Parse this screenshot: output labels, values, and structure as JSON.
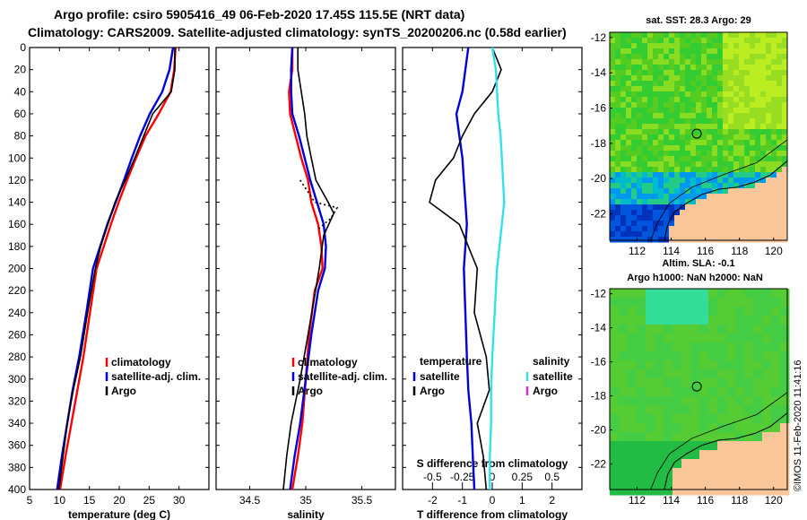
{
  "header": {
    "line1": "Argo profile: csiro 5905416_49 06-Feb-2020 17.45S 115.5E (NRT data)",
    "line2": "Climatology: CARS2009. Satellite-adjusted climatology: synTS_20200206.nc (0.58d earlier)"
  },
  "side_label": "©IMOS 11-Feb-2020 11:41:16",
  "colors": {
    "climatology": "#ff0000",
    "satellite": "#0000dd",
    "argo": "#000000",
    "salinity_satellite": "#33e0ee",
    "salinity_argo": "#cc33cc",
    "land": "#f9c69a"
  },
  "chart_data": [
    {
      "type": "line",
      "id": "temperature",
      "xlabel": "temperature (deg C)",
      "ylabel": "",
      "xlim": [
        5,
        35
      ],
      "ylim": [
        400,
        0
      ],
      "xticks": [
        5,
        10,
        15,
        20,
        25,
        30
      ],
      "yticks": [
        0,
        20,
        40,
        60,
        80,
        100,
        120,
        140,
        160,
        180,
        200,
        220,
        240,
        260,
        280,
        300,
        320,
        340,
        360,
        380,
        400
      ],
      "legend": [
        "climatology",
        "satellite-adj. clim.",
        "Argo"
      ],
      "series": [
        {
          "name": "climatology",
          "color": "red",
          "x": [
            29.4,
            29.2,
            28.6,
            26.6,
            24.4,
            22.8,
            21.3,
            19.9,
            18.6,
            17.4,
            16.2,
            15.1,
            14.0,
            13.0,
            12.0,
            11.0,
            10.1
          ],
          "y": [
            0,
            20,
            40,
            60,
            80,
            100,
            120,
            140,
            160,
            180,
            200,
            240,
            280,
            310,
            340,
            370,
            400
          ]
        },
        {
          "name": "satellite-adj. clim.",
          "color": "blue",
          "x": [
            29.0,
            28.4,
            27.2,
            25.1,
            23.5,
            22.1,
            20.8,
            19.4,
            18.0,
            16.8,
            15.6,
            14.5,
            13.3,
            12.2,
            11.3,
            10.4,
            9.6
          ],
          "y": [
            0,
            20,
            40,
            60,
            80,
            100,
            120,
            140,
            160,
            180,
            200,
            240,
            280,
            310,
            340,
            370,
            400
          ]
        },
        {
          "name": "Argo",
          "color": "black",
          "x": [
            29.3,
            29.3,
            28.7,
            25.6,
            24.1,
            22.6,
            21.0,
            19.3,
            18.1,
            16.9,
            16.0,
            14.7,
            13.5,
            12.3,
            11.3,
            10.6,
            9.9
          ],
          "y": [
            0,
            20,
            40,
            60,
            80,
            100,
            120,
            140,
            160,
            180,
            200,
            240,
            280,
            310,
            340,
            370,
            400
          ]
        }
      ]
    },
    {
      "type": "line",
      "id": "salinity",
      "xlabel": "salinity",
      "ylabel": "",
      "xlim": [
        34.2,
        35.8
      ],
      "ylim": [
        400,
        0
      ],
      "xticks": [
        34.5,
        35,
        35.5
      ],
      "legend": [
        "climatology",
        "satellite-adj. clim.",
        "Argo"
      ],
      "series": [
        {
          "name": "climatology",
          "color": "red",
          "x": [
            34.88,
            34.88,
            34.85,
            34.86,
            34.91,
            34.96,
            35.02,
            35.05,
            35.11,
            35.14,
            35.15,
            35.08,
            35.03,
            35.0,
            34.97,
            34.93,
            34.88
          ],
          "y": [
            0,
            20,
            40,
            60,
            80,
            100,
            120,
            140,
            160,
            180,
            200,
            220,
            260,
            300,
            340,
            370,
            400
          ]
        },
        {
          "name": "satellite-adj. clim.",
          "color": "blue",
          "x": [
            34.88,
            34.87,
            34.87,
            34.88,
            34.94,
            34.99,
            35.04,
            35.1,
            35.16,
            35.18,
            35.17,
            35.11,
            35.05,
            35.0,
            34.95,
            34.9,
            34.86
          ],
          "y": [
            0,
            20,
            40,
            60,
            80,
            100,
            120,
            140,
            160,
            180,
            200,
            220,
            260,
            300,
            340,
            370,
            400
          ]
        },
        {
          "name": "Argo",
          "color": "black",
          "x": [
            34.93,
            34.93,
            34.96,
            34.99,
            35.01,
            35.05,
            35.09,
            35.2,
            35.25,
            35.16,
            35.12,
            35.07,
            35.02,
            34.95,
            34.87,
            34.83,
            34.8
          ],
          "y": [
            0,
            20,
            40,
            60,
            80,
            100,
            120,
            140,
            150,
            170,
            200,
            230,
            260,
            300,
            340,
            370,
            400
          ]
        }
      ]
    },
    {
      "type": "line",
      "id": "difference",
      "xlabel": "T difference from climatology",
      "title_inner": "S difference from climatology",
      "xlim": [
        -3,
        3
      ],
      "ylim": [
        400,
        0
      ],
      "xticks": [
        -2,
        -1,
        0,
        1,
        2
      ],
      "xticklabels": [
        "-2",
        "-1",
        "0",
        "1",
        "2"
      ],
      "sticks": [
        -0.5,
        -0.25,
        0,
        0.25,
        0.5
      ],
      "sticklabels": [
        "-0.5",
        "-0.25",
        "0",
        "0.25",
        "0.5"
      ],
      "legend_temperature": {
        "title": "temperature",
        "items": [
          "satellite",
          "Argo"
        ]
      },
      "legend_salinity": {
        "title": "salinity",
        "items": [
          "satellite",
          "Argo"
        ]
      },
      "series": [
        {
          "name": "T satellite - clim",
          "color": "blue",
          "x": [
            -0.8,
            -0.9,
            -1.0,
            -1.2,
            -1.1,
            -1.0,
            -0.95,
            -0.9,
            -0.85,
            -0.9,
            -0.95,
            -0.9,
            -0.85,
            -0.8,
            -0.7,
            -0.65,
            -0.6
          ],
          "y": [
            0,
            20,
            40,
            60,
            80,
            100,
            120,
            140,
            160,
            180,
            200,
            240,
            280,
            310,
            340,
            370,
            400
          ]
        },
        {
          "name": "T Argo - clim",
          "color": "black",
          "x": [
            0.0,
            0.3,
            0.0,
            -0.6,
            -1.0,
            -1.3,
            -1.9,
            -2.1,
            -1.1,
            -0.8,
            -0.5,
            -0.6,
            -0.2,
            -0.1,
            -0.5,
            -0.3,
            -0.2
          ],
          "y": [
            0,
            20,
            40,
            60,
            80,
            100,
            120,
            140,
            160,
            180,
            200,
            240,
            280,
            310,
            340,
            370,
            400
          ]
        },
        {
          "name": "S satellite - clim",
          "color": "cyan",
          "x": [
            0.0,
            0.03,
            0.04,
            0.05,
            0.07,
            0.08,
            0.09,
            0.1,
            0.08,
            0.06,
            0.04,
            0.02,
            0.0,
            -0.01,
            -0.01,
            -0.02,
            -0.02
          ],
          "y": [
            0,
            20,
            40,
            60,
            80,
            100,
            120,
            140,
            160,
            180,
            200,
            240,
            280,
            310,
            340,
            370,
            400
          ]
        }
      ]
    },
    {
      "type": "heatmap",
      "id": "sst_map",
      "title": "sat. SST: 28.3 Argo: 29",
      "xlim": [
        110.4,
        120.8
      ],
      "ylim": [
        -23.5,
        -11.7
      ],
      "xticks": [
        112,
        114,
        116,
        118,
        120
      ],
      "yticks": [
        -12,
        -14,
        -16,
        -18,
        -20,
        -22
      ],
      "argo_location": [
        115.5,
        -17.45
      ]
    },
    {
      "type": "heatmap",
      "id": "sla_map",
      "title": "Altim. SLA: -0.1",
      "subtitle": "Argo h1000: NaN h2000: NaN",
      "xlim": [
        110.4,
        120.8
      ],
      "ylim": [
        -23.5,
        -11.7
      ],
      "xticks": [
        112,
        114,
        116,
        118,
        120
      ],
      "yticks": [
        -12,
        -14,
        -16,
        -18,
        -20,
        -22
      ],
      "argo_location": [
        115.5,
        -17.45
      ]
    }
  ]
}
